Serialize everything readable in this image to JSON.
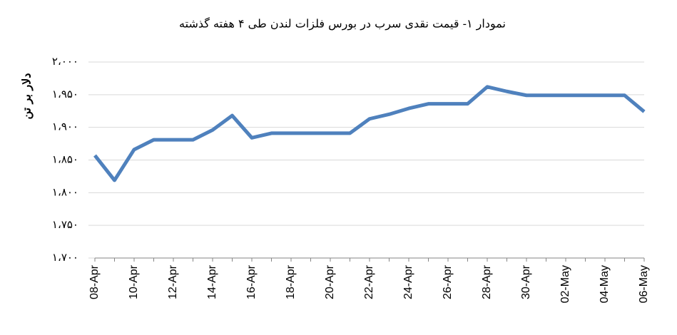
{
  "chart_data": {
    "type": "line",
    "title": "نمودار ۱- قیمت نقدی سرب  در بورس فلزات لندن طی ۴ هفته گذشته",
    "y_label": "دلار بر تن",
    "categories": [
      "08-Apr",
      null,
      "10-Apr",
      null,
      "12-Apr",
      null,
      "14-Apr",
      null,
      "16-Apr",
      null,
      "18-Apr",
      null,
      "20-Apr",
      null,
      "22-Apr",
      null,
      "24-Apr",
      null,
      "26-Apr",
      null,
      "28-Apr",
      null,
      "30-Apr",
      null,
      "02-May",
      null,
      "04-May",
      null,
      "06-May"
    ],
    "series": [
      {
        "name": "Lead",
        "color": "#4f81bd",
        "values": [
          1857,
          1819,
          1866,
          1881,
          1881,
          1881,
          1896,
          1918,
          1884,
          1891,
          1891,
          1891,
          1891,
          1891,
          1913,
          1920,
          1929,
          1936,
          1936,
          1936,
          1962,
          1955,
          1949,
          1949,
          1949,
          1949,
          1949,
          1949,
          1924
        ]
      }
    ],
    "ylim": [
      1700,
      2000
    ],
    "yticks": [
      {
        "value": 1700,
        "label": "۱،۷۰۰"
      },
      {
        "value": 1750,
        "label": "۱،۷۵۰"
      },
      {
        "value": 1800,
        "label": "۱،۸۰۰"
      },
      {
        "value": 1850,
        "label": "۱،۸۵۰"
      },
      {
        "value": 1900,
        "label": "۱،۹۰۰"
      },
      {
        "value": 1950,
        "label": "۱،۹۵۰"
      },
      {
        "value": 2000,
        "label": "۲،۰۰۰"
      }
    ],
    "grid": true
  }
}
